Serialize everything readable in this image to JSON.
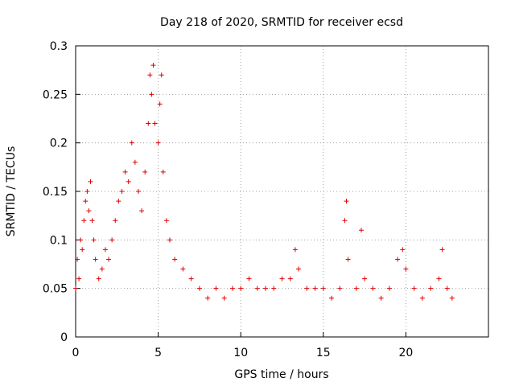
{
  "chart_data": {
    "type": "scatter",
    "title": "Day 218 of 2020, SRMTID for receiver ecsd",
    "xlabel": "GPS time / hours",
    "ylabel": "SRMTID / TECUs",
    "xlim": [
      0,
      25
    ],
    "ylim": [
      0,
      0.3
    ],
    "grid": true,
    "marker": "+",
    "marker_color": "#e00000",
    "x_ticks": [
      0,
      5,
      10,
      15,
      20
    ],
    "x_tick_labels": [
      "0",
      "5",
      "10",
      "15",
      "20"
    ],
    "y_ticks": [
      0,
      0.05,
      0.1,
      0.15,
      0.2,
      0.25,
      0.3
    ],
    "y_tick_labels": [
      "0",
      "0.05",
      "0.1",
      "0.15",
      "0.2",
      "0.25",
      "0.3"
    ],
    "series": [
      {
        "name": "SRMTID",
        "points": [
          [
            0.0,
            0.05
          ],
          [
            0.1,
            0.08
          ],
          [
            0.2,
            0.06
          ],
          [
            0.3,
            0.1
          ],
          [
            0.4,
            0.09
          ],
          [
            0.5,
            0.12
          ],
          [
            0.6,
            0.14
          ],
          [
            0.7,
            0.15
          ],
          [
            0.8,
            0.13
          ],
          [
            0.9,
            0.16
          ],
          [
            1.0,
            0.12
          ],
          [
            1.1,
            0.1
          ],
          [
            1.2,
            0.08
          ],
          [
            1.4,
            0.06
          ],
          [
            1.6,
            0.07
          ],
          [
            1.8,
            0.09
          ],
          [
            2.0,
            0.08
          ],
          [
            2.2,
            0.1
          ],
          [
            2.4,
            0.12
          ],
          [
            2.6,
            0.14
          ],
          [
            2.8,
            0.15
          ],
          [
            3.0,
            0.17
          ],
          [
            3.2,
            0.16
          ],
          [
            3.4,
            0.2
          ],
          [
            3.6,
            0.18
          ],
          [
            3.8,
            0.15
          ],
          [
            4.0,
            0.13
          ],
          [
            4.2,
            0.17
          ],
          [
            4.4,
            0.22
          ],
          [
            4.5,
            0.27
          ],
          [
            4.6,
            0.25
          ],
          [
            4.7,
            0.28
          ],
          [
            4.8,
            0.22
          ],
          [
            5.0,
            0.2
          ],
          [
            5.1,
            0.24
          ],
          [
            5.2,
            0.27
          ],
          [
            5.3,
            0.17
          ],
          [
            5.5,
            0.12
          ],
          [
            5.7,
            0.1
          ],
          [
            6.0,
            0.08
          ],
          [
            6.5,
            0.07
          ],
          [
            7.0,
            0.06
          ],
          [
            7.5,
            0.05
          ],
          [
            8.0,
            0.04
          ],
          [
            8.5,
            0.05
          ],
          [
            9.0,
            0.04
          ],
          [
            9.5,
            0.05
          ],
          [
            10.0,
            0.05
          ],
          [
            10.5,
            0.06
          ],
          [
            11.0,
            0.05
          ],
          [
            11.5,
            0.05
          ],
          [
            12.0,
            0.05
          ],
          [
            12.5,
            0.06
          ],
          [
            13.0,
            0.06
          ],
          [
            13.3,
            0.09
          ],
          [
            13.5,
            0.07
          ],
          [
            14.0,
            0.05
          ],
          [
            14.5,
            0.05
          ],
          [
            15.0,
            0.05
          ],
          [
            15.5,
            0.04
          ],
          [
            16.0,
            0.05
          ],
          [
            16.3,
            0.12
          ],
          [
            16.4,
            0.14
          ],
          [
            16.5,
            0.08
          ],
          [
            17.0,
            0.05
          ],
          [
            17.3,
            0.11
          ],
          [
            17.5,
            0.06
          ],
          [
            18.0,
            0.05
          ],
          [
            18.5,
            0.04
          ],
          [
            19.0,
            0.05
          ],
          [
            19.5,
            0.08
          ],
          [
            19.8,
            0.09
          ],
          [
            20.0,
            0.07
          ],
          [
            20.5,
            0.05
          ],
          [
            21.0,
            0.04
          ],
          [
            21.5,
            0.05
          ],
          [
            22.0,
            0.06
          ],
          [
            22.2,
            0.09
          ],
          [
            22.5,
            0.05
          ],
          [
            22.8,
            0.04
          ]
        ]
      }
    ]
  }
}
